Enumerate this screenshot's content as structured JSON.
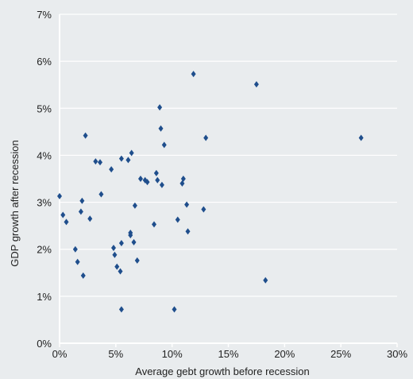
{
  "chart_data": {
    "type": "scatter",
    "xlabel": "Average gebt growth before recession",
    "ylabel": "GDP growth after recession",
    "xlim": [
      0,
      30
    ],
    "ylim": [
      0,
      7
    ],
    "x_ticks": [
      {
        "value": 0,
        "label": "0%"
      },
      {
        "value": 5,
        "label": "5%"
      },
      {
        "value": 10,
        "label": "10%"
      },
      {
        "value": 15,
        "label": "15%"
      },
      {
        "value": 20,
        "label": "20%"
      },
      {
        "value": 25,
        "label": "25%"
      },
      {
        "value": 30,
        "label": "30%"
      }
    ],
    "y_ticks": [
      {
        "value": 0,
        "label": "0%"
      },
      {
        "value": 1,
        "label": "1%"
      },
      {
        "value": 2,
        "label": "2%"
      },
      {
        "value": 3,
        "label": "3%"
      },
      {
        "value": 4,
        "label": "4%"
      },
      {
        "value": 5,
        "label": "5%"
      },
      {
        "value": 6,
        "label": "6%"
      },
      {
        "value": 7,
        "label": "7%"
      }
    ],
    "grid": "horizontal",
    "marker": "diamond",
    "marker_color": "#1f4e8c",
    "axis_color": "#ffffff",
    "points": [
      {
        "x": 0.0,
        "y": 3.13
      },
      {
        "x": 0.3,
        "y": 2.73
      },
      {
        "x": 0.6,
        "y": 2.58
      },
      {
        "x": 1.4,
        "y": 2.0
      },
      {
        "x": 1.6,
        "y": 1.73
      },
      {
        "x": 1.9,
        "y": 2.8
      },
      {
        "x": 2.0,
        "y": 3.03
      },
      {
        "x": 2.1,
        "y": 1.44
      },
      {
        "x": 2.3,
        "y": 4.42
      },
      {
        "x": 2.7,
        "y": 2.65
      },
      {
        "x": 3.2,
        "y": 3.87
      },
      {
        "x": 3.6,
        "y": 3.85
      },
      {
        "x": 3.7,
        "y": 3.17
      },
      {
        "x": 4.6,
        "y": 3.7
      },
      {
        "x": 4.8,
        "y": 2.03
      },
      {
        "x": 4.9,
        "y": 1.88
      },
      {
        "x": 5.1,
        "y": 1.63
      },
      {
        "x": 5.4,
        "y": 1.53
      },
      {
        "x": 5.5,
        "y": 3.93
      },
      {
        "x": 5.5,
        "y": 2.13
      },
      {
        "x": 5.5,
        "y": 0.72
      },
      {
        "x": 6.1,
        "y": 3.9
      },
      {
        "x": 6.3,
        "y": 2.35
      },
      {
        "x": 6.3,
        "y": 2.3
      },
      {
        "x": 6.4,
        "y": 4.05
      },
      {
        "x": 6.6,
        "y": 2.15
      },
      {
        "x": 6.7,
        "y": 2.93
      },
      {
        "x": 6.9,
        "y": 1.76
      },
      {
        "x": 7.2,
        "y": 3.5
      },
      {
        "x": 7.6,
        "y": 3.47
      },
      {
        "x": 7.8,
        "y": 3.43
      },
      {
        "x": 8.4,
        "y": 2.53
      },
      {
        "x": 8.6,
        "y": 3.62
      },
      {
        "x": 8.7,
        "y": 3.47
      },
      {
        "x": 8.9,
        "y": 5.02
      },
      {
        "x": 9.0,
        "y": 4.57
      },
      {
        "x": 9.1,
        "y": 3.37
      },
      {
        "x": 9.3,
        "y": 4.22
      },
      {
        "x": 10.2,
        "y": 0.72
      },
      {
        "x": 10.5,
        "y": 2.63
      },
      {
        "x": 10.9,
        "y": 3.4
      },
      {
        "x": 11.0,
        "y": 3.5
      },
      {
        "x": 11.3,
        "y": 2.95
      },
      {
        "x": 11.4,
        "y": 2.38
      },
      {
        "x": 11.9,
        "y": 5.73
      },
      {
        "x": 12.8,
        "y": 2.85
      },
      {
        "x": 13.0,
        "y": 4.37
      },
      {
        "x": 17.5,
        "y": 5.51
      },
      {
        "x": 18.3,
        "y": 1.34
      },
      {
        "x": 26.8,
        "y": 4.37
      }
    ]
  }
}
